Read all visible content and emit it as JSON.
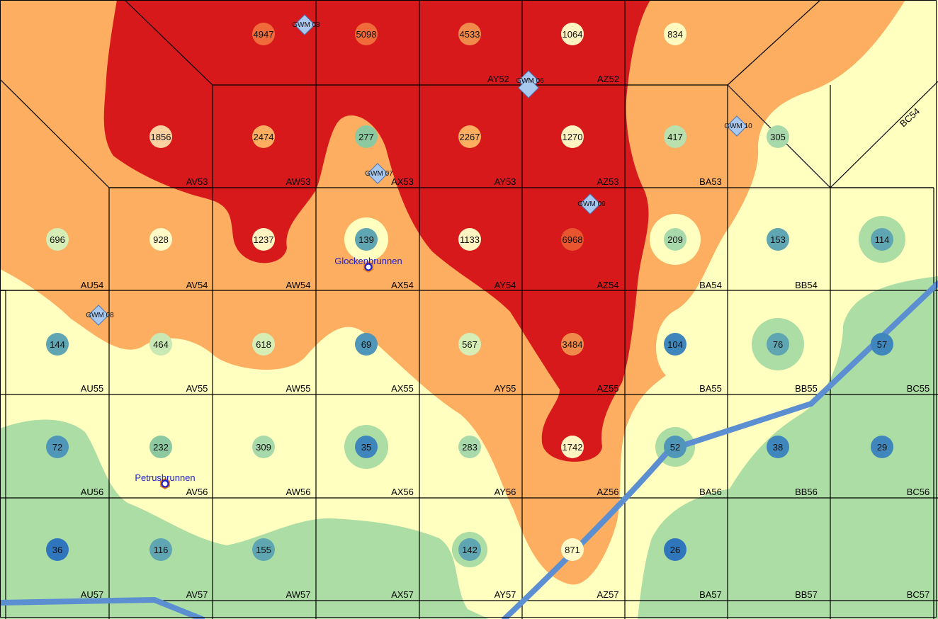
{
  "colors": {
    "class_1": "#d7191c",
    "class_2": "#fdae61",
    "class_3": "#ffffbf",
    "class_4": "#abdda4",
    "river": "#5b8fd1",
    "well_marker": "#a8c8ef",
    "spring_label": "#1f1fc4",
    "spring_marker": "#e8801e"
  },
  "cells": [
    {
      "label": "AV53",
      "value": "1856",
      "fill": "#fdd2a0"
    },
    {
      "label": "AW53",
      "value": "2474",
      "fill": "#fdae61"
    },
    {
      "label": "AX53",
      "value": "277",
      "fill": "#8cc9a0"
    },
    {
      "label": "AY53",
      "value": "2267",
      "fill": "#fdae61"
    },
    {
      "label": "AZ53",
      "value": "1270",
      "fill": "#fff3c2"
    },
    {
      "label": "BA53",
      "value": "417",
      "fill": "#b9e0ad"
    },
    {
      "label": "",
      "value": "305",
      "fill": "#a8d9ab"
    },
    {
      "label": "",
      "value": "4947",
      "fill": "#f06a3a"
    },
    {
      "label": "",
      "value": "5098",
      "fill": "#f06a3a"
    },
    {
      "label": "",
      "value": "4533",
      "fill": "#f08a4a"
    },
    {
      "label": "",
      "value": "1064",
      "fill": "#fff3c2"
    },
    {
      "label": "",
      "value": "834",
      "fill": "#fefac0"
    },
    {
      "label": "AU54",
      "value": "696",
      "fill": "#d6eeb6"
    },
    {
      "label": "AV54",
      "value": "928",
      "fill": "#fffac8"
    },
    {
      "label": "AW54",
      "value": "1237",
      "fill": "#fff3c2"
    },
    {
      "label": "AX54",
      "value": "139",
      "fill": "#5fa6b2"
    },
    {
      "label": "AY54",
      "value": "1133",
      "fill": "#fff3c2"
    },
    {
      "label": "AZ54",
      "value": "6968",
      "fill": "#e8552e"
    },
    {
      "label": "BA54",
      "value": "209",
      "fill": "#a8d9ab"
    },
    {
      "label": "BB54",
      "value": "153",
      "fill": "#5fa6b2"
    },
    {
      "label": "",
      "value": "114",
      "fill": "#5fa6b2"
    },
    {
      "label": "AU55",
      "value": "144",
      "fill": "#5fa6b2"
    },
    {
      "label": "AV55",
      "value": "464",
      "fill": "#c9e8b4"
    },
    {
      "label": "AW55",
      "value": "618",
      "fill": "#d6eeb6"
    },
    {
      "label": "AX55",
      "value": "69",
      "fill": "#4f96b8"
    },
    {
      "label": "AY55",
      "value": "567",
      "fill": "#d6eeb6"
    },
    {
      "label": "AZ55",
      "value": "3484",
      "fill": "#f08a4a"
    },
    {
      "label": "BA55",
      "value": "104",
      "fill": "#3f86bc"
    },
    {
      "label": "BB55",
      "value": "76",
      "fill": "#5fa6b2"
    },
    {
      "label": "BC55",
      "value": "57",
      "fill": "#3f86bc"
    },
    {
      "label": "AU56",
      "value": "72",
      "fill": "#4f96b8"
    },
    {
      "label": "AV56",
      "value": "232",
      "fill": "#8cc9a0"
    },
    {
      "label": "AW56",
      "value": "309",
      "fill": "#a8d9ab"
    },
    {
      "label": "AX56",
      "value": "35",
      "fill": "#3f86bc"
    },
    {
      "label": "AY56",
      "value": "283",
      "fill": "#a8d9ab"
    },
    {
      "label": "AZ56",
      "value": "1742",
      "fill": "#fff3c2"
    },
    {
      "label": "BA56",
      "value": "52",
      "fill": "#4f96b8"
    },
    {
      "label": "BB56",
      "value": "38",
      "fill": "#3f86bc"
    },
    {
      "label": "BC56",
      "value": "29",
      "fill": "#3f86bc"
    },
    {
      "label": "AU57",
      "value": "36",
      "fill": "#2f76bc"
    },
    {
      "label": "AV57",
      "value": "116",
      "fill": "#5fa6b2"
    },
    {
      "label": "AW57",
      "value": "155",
      "fill": "#5fa6b2"
    },
    {
      "label": "AX57",
      "value": "",
      "fill": ""
    },
    {
      "label": "AY57",
      "value": "142",
      "fill": "#5fa6b2"
    },
    {
      "label": "AZ57",
      "value": "871",
      "fill": "#fffac8"
    },
    {
      "label": "BA57",
      "value": "26",
      "fill": "#2f76bc"
    },
    {
      "label": "BB57",
      "value": "",
      "fill": ""
    },
    {
      "label": "BC57",
      "value": "",
      "fill": ""
    }
  ],
  "extra_labels": {
    "ay52": "AY52",
    "az52": "AZ52",
    "bc54": "BC54"
  },
  "wells": [
    "GWM 03",
    "GWM 06",
    "GWM 07",
    "GWM 09",
    "GWM 10",
    "GWM 08"
  ],
  "springs": [
    "Glockenbrunnen",
    "Petrusbrunnen"
  ]
}
